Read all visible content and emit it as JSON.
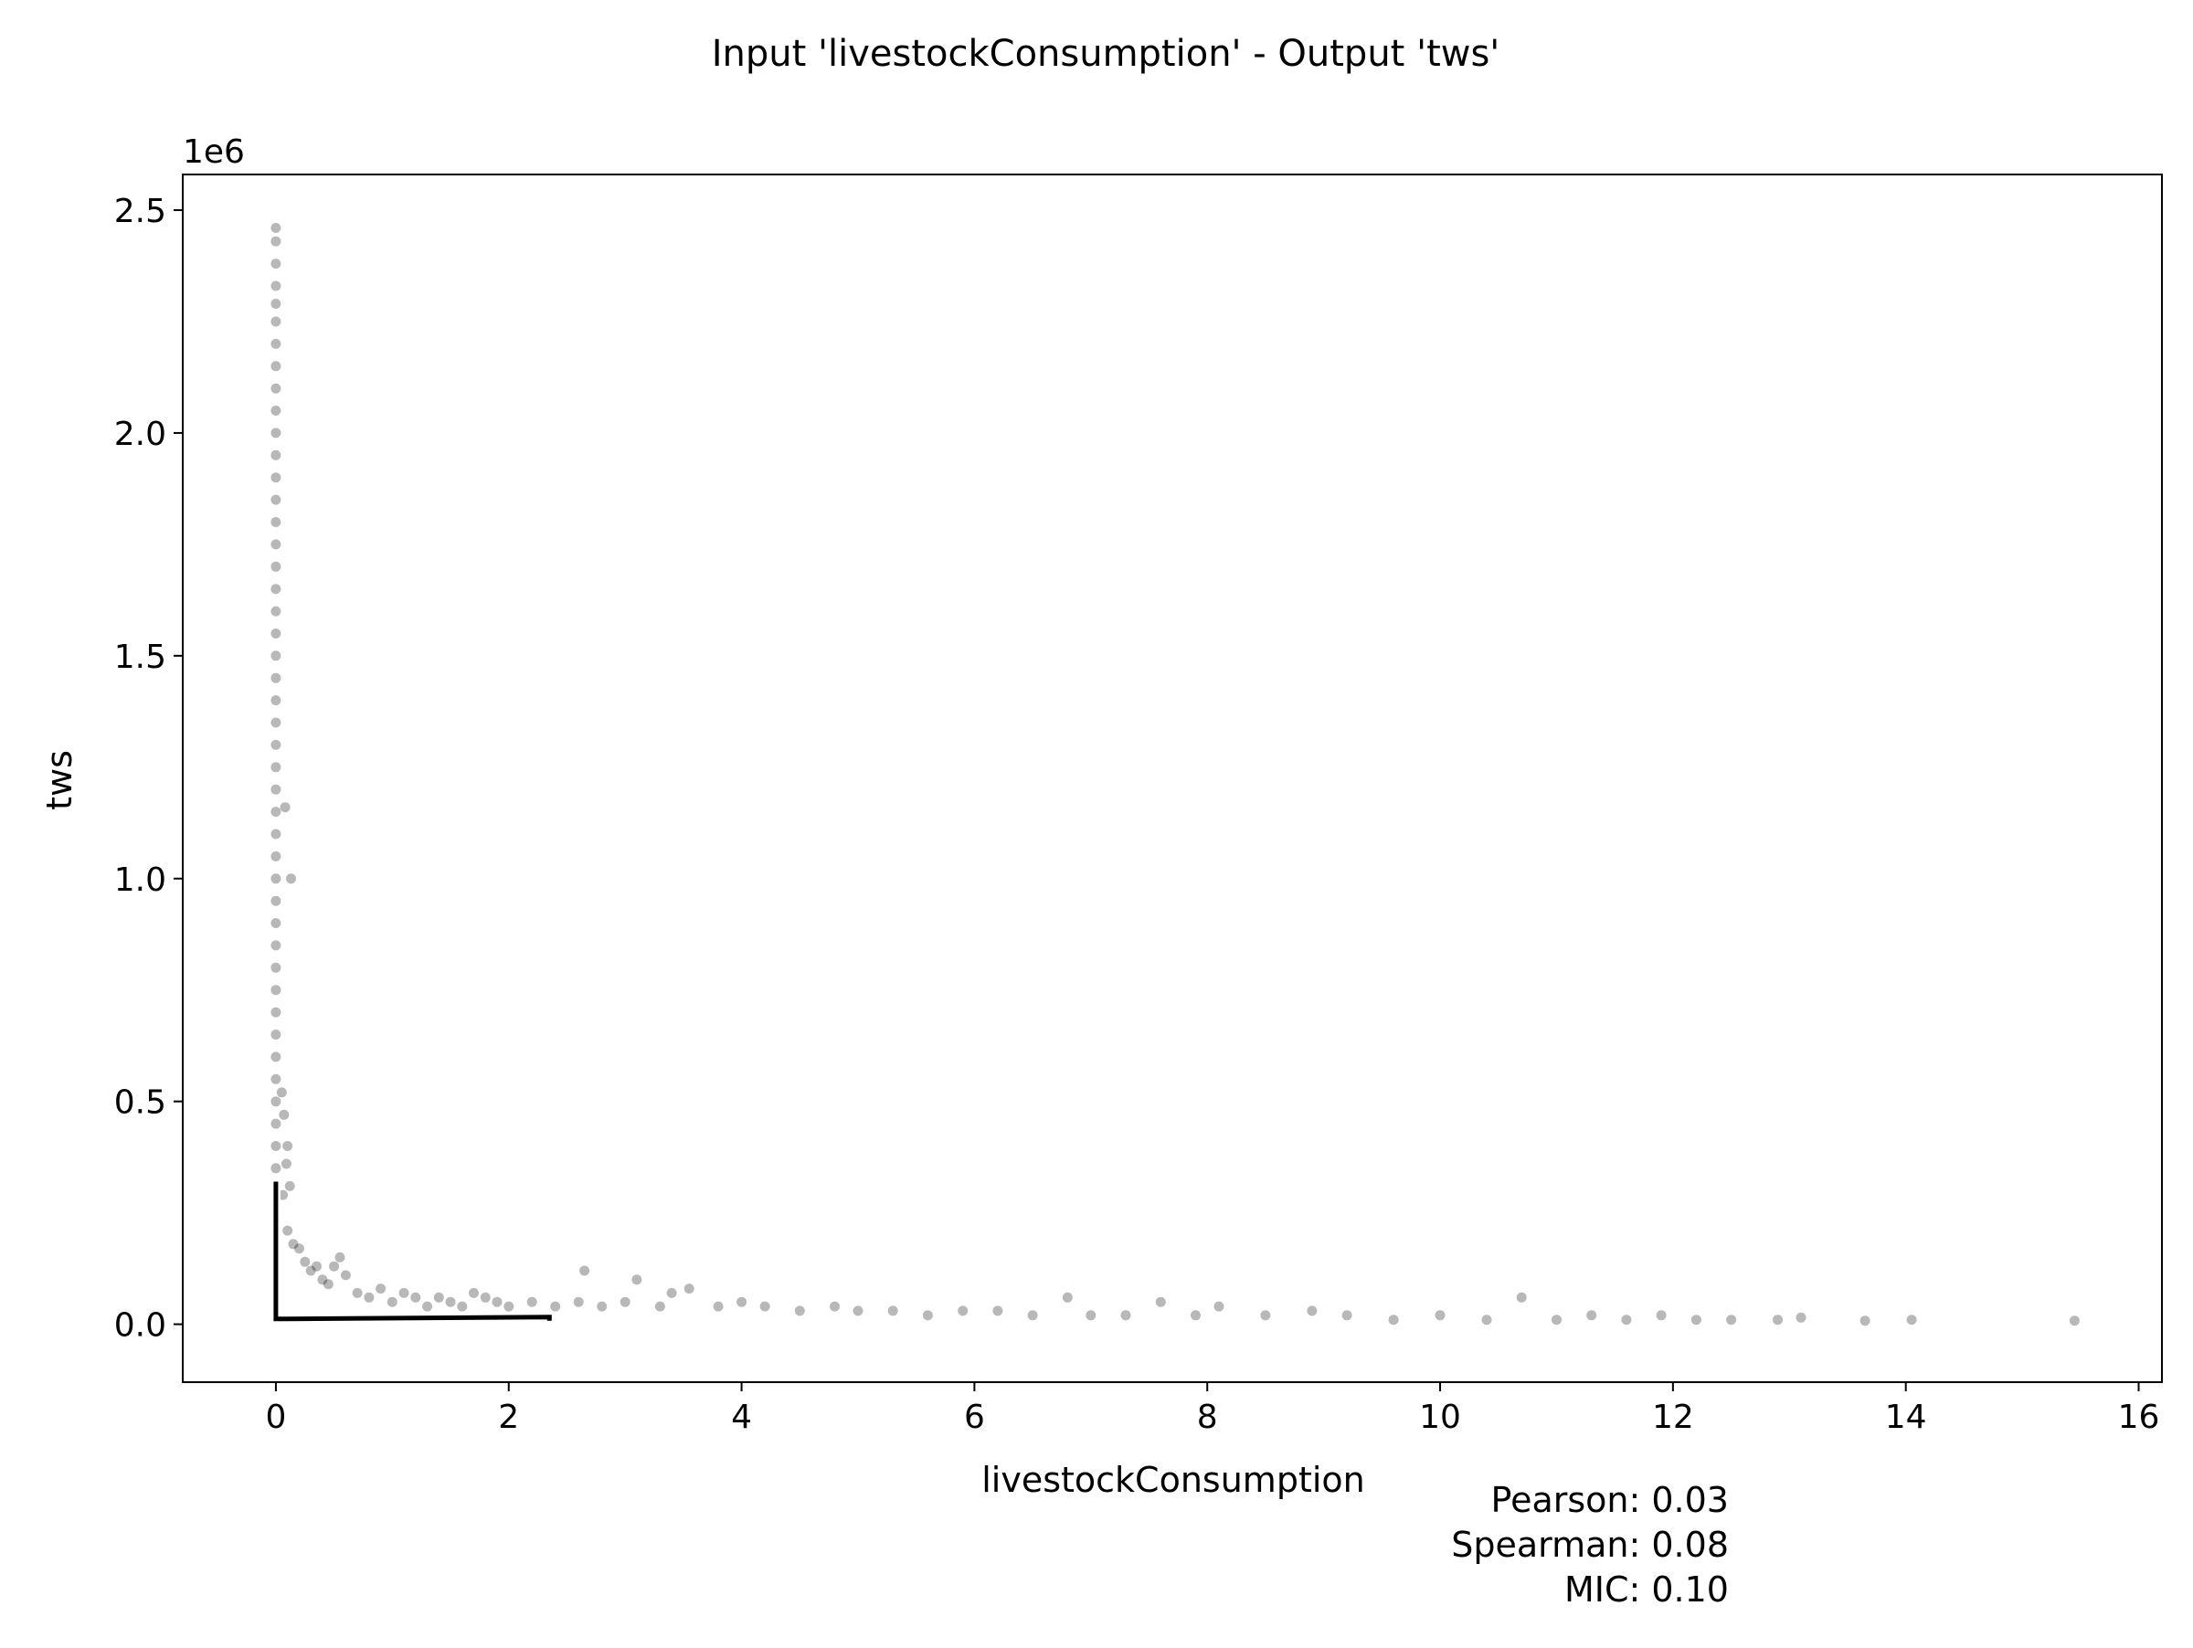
{
  "chart_data": {
    "type": "scatter",
    "title": "Input 'livestockConsumption' - Output 'tws'",
    "xlabel": "livestockConsumption",
    "ylabel": "tws",
    "y_offset_label": "1e6",
    "xlim": [
      -0.8,
      16.2
    ],
    "ylim": [
      -0.13,
      2.58
    ],
    "xticks": [
      0,
      2,
      4,
      6,
      8,
      10,
      12,
      14,
      16
    ],
    "yticks": [
      0.0,
      0.5,
      1.0,
      1.5,
      2.0,
      2.5
    ],
    "xtick_labels": [
      "0",
      "2",
      "4",
      "6",
      "8",
      "10",
      "12",
      "14",
      "16"
    ],
    "ytick_labels": [
      "0.0",
      "0.5",
      "1.0",
      "1.5",
      "2.0",
      "2.5"
    ],
    "y_scale_note": "y values in units of 1e6",
    "grid": false,
    "legend": "none",
    "point_color": "#000000",
    "trend_line": {
      "color": "#000000",
      "outline_color": "#ffffff",
      "points": [
        [
          0.0,
          0.32
        ],
        [
          0.0,
          0.012
        ],
        [
          0.1,
          0.012
        ],
        [
          1.2,
          0.014
        ],
        [
          2.35,
          0.016
        ],
        [
          2.35,
          0.008
        ]
      ]
    },
    "vertical_cluster_points": [
      [
        0.0,
        2.46
      ],
      [
        0.0,
        2.43
      ],
      [
        0.0,
        2.38
      ],
      [
        0.0,
        2.33
      ],
      [
        0.0,
        2.29
      ],
      [
        0.0,
        2.25
      ],
      [
        0.0,
        2.2
      ],
      [
        0.0,
        2.15
      ],
      [
        0.0,
        2.1
      ],
      [
        0.0,
        2.05
      ],
      [
        0.0,
        2.0
      ],
      [
        0.0,
        1.95
      ],
      [
        0.0,
        1.9
      ],
      [
        0.0,
        1.85
      ],
      [
        0.0,
        1.8
      ],
      [
        0.0,
        1.75
      ],
      [
        0.0,
        1.7
      ],
      [
        0.0,
        1.65
      ],
      [
        0.0,
        1.6
      ],
      [
        0.0,
        1.55
      ],
      [
        0.0,
        1.5
      ],
      [
        0.0,
        1.45
      ],
      [
        0.0,
        1.4
      ],
      [
        0.0,
        1.35
      ],
      [
        0.0,
        1.3
      ],
      [
        0.0,
        1.25
      ],
      [
        0.0,
        1.2
      ],
      [
        0.0,
        1.15
      ],
      [
        0.0,
        1.1
      ],
      [
        0.0,
        1.05
      ],
      [
        0.0,
        1.0
      ],
      [
        0.0,
        0.95
      ],
      [
        0.0,
        0.9
      ],
      [
        0.0,
        0.85
      ],
      [
        0.0,
        0.8
      ],
      [
        0.0,
        0.75
      ],
      [
        0.0,
        0.7
      ],
      [
        0.0,
        0.65
      ],
      [
        0.0,
        0.6
      ],
      [
        0.0,
        0.55
      ],
      [
        0.0,
        0.5
      ],
      [
        0.0,
        0.45
      ],
      [
        0.0,
        0.4
      ],
      [
        0.0,
        0.35
      ],
      [
        0.08,
        1.16
      ],
      [
        0.13,
        1.0
      ],
      [
        0.05,
        0.52
      ],
      [
        0.07,
        0.47
      ],
      [
        0.1,
        0.4
      ],
      [
        0.09,
        0.36
      ],
      [
        0.12,
        0.31
      ],
      [
        0.06,
        0.29
      ]
    ],
    "horizontal_band_points": [
      [
        0.1,
        0.21
      ],
      [
        0.15,
        0.18
      ],
      [
        0.2,
        0.17
      ],
      [
        0.25,
        0.14
      ],
      [
        0.3,
        0.12
      ],
      [
        0.35,
        0.13
      ],
      [
        0.4,
        0.1
      ],
      [
        0.45,
        0.09
      ],
      [
        0.5,
        0.13
      ],
      [
        0.55,
        0.15
      ],
      [
        0.6,
        0.11
      ],
      [
        0.7,
        0.07
      ],
      [
        0.8,
        0.06
      ],
      [
        0.9,
        0.08
      ],
      [
        1.0,
        0.05
      ],
      [
        1.1,
        0.07
      ],
      [
        1.2,
        0.06
      ],
      [
        1.3,
        0.04
      ],
      [
        1.4,
        0.06
      ],
      [
        1.5,
        0.05
      ],
      [
        1.6,
        0.04
      ],
      [
        1.7,
        0.07
      ],
      [
        1.8,
        0.06
      ],
      [
        1.9,
        0.05
      ],
      [
        2.0,
        0.04
      ],
      [
        2.2,
        0.05
      ],
      [
        2.4,
        0.04
      ],
      [
        2.6,
        0.05
      ],
      [
        2.65,
        0.12
      ],
      [
        2.8,
        0.04
      ],
      [
        3.0,
        0.05
      ],
      [
        3.1,
        0.1
      ],
      [
        3.3,
        0.04
      ],
      [
        3.4,
        0.07
      ],
      [
        3.55,
        0.08
      ],
      [
        3.8,
        0.04
      ],
      [
        4.0,
        0.05
      ],
      [
        4.2,
        0.04
      ],
      [
        4.5,
        0.03
      ],
      [
        4.8,
        0.04
      ],
      [
        5.0,
        0.03
      ],
      [
        5.3,
        0.03
      ],
      [
        5.6,
        0.02
      ],
      [
        5.9,
        0.03
      ],
      [
        6.2,
        0.03
      ],
      [
        6.5,
        0.02
      ],
      [
        6.8,
        0.06
      ],
      [
        7.0,
        0.02
      ],
      [
        7.3,
        0.02
      ],
      [
        7.6,
        0.05
      ],
      [
        7.9,
        0.02
      ],
      [
        8.1,
        0.04
      ],
      [
        8.5,
        0.02
      ],
      [
        8.9,
        0.03
      ],
      [
        9.2,
        0.02
      ],
      [
        9.6,
        0.01
      ],
      [
        10.0,
        0.02
      ],
      [
        10.4,
        0.01
      ],
      [
        10.7,
        0.06
      ],
      [
        11.0,
        0.01
      ],
      [
        11.3,
        0.02
      ],
      [
        11.6,
        0.01
      ],
      [
        11.9,
        0.02
      ],
      [
        12.2,
        0.01
      ],
      [
        12.5,
        0.01
      ],
      [
        12.9,
        0.01
      ],
      [
        13.1,
        0.015
      ],
      [
        13.65,
        0.008
      ],
      [
        14.05,
        0.01
      ],
      [
        15.45,
        0.008
      ]
    ]
  },
  "stats": {
    "pearson": "Pearson: 0.03",
    "spearman": "Spearman: 0.08",
    "mic": "MIC: 0.10"
  }
}
